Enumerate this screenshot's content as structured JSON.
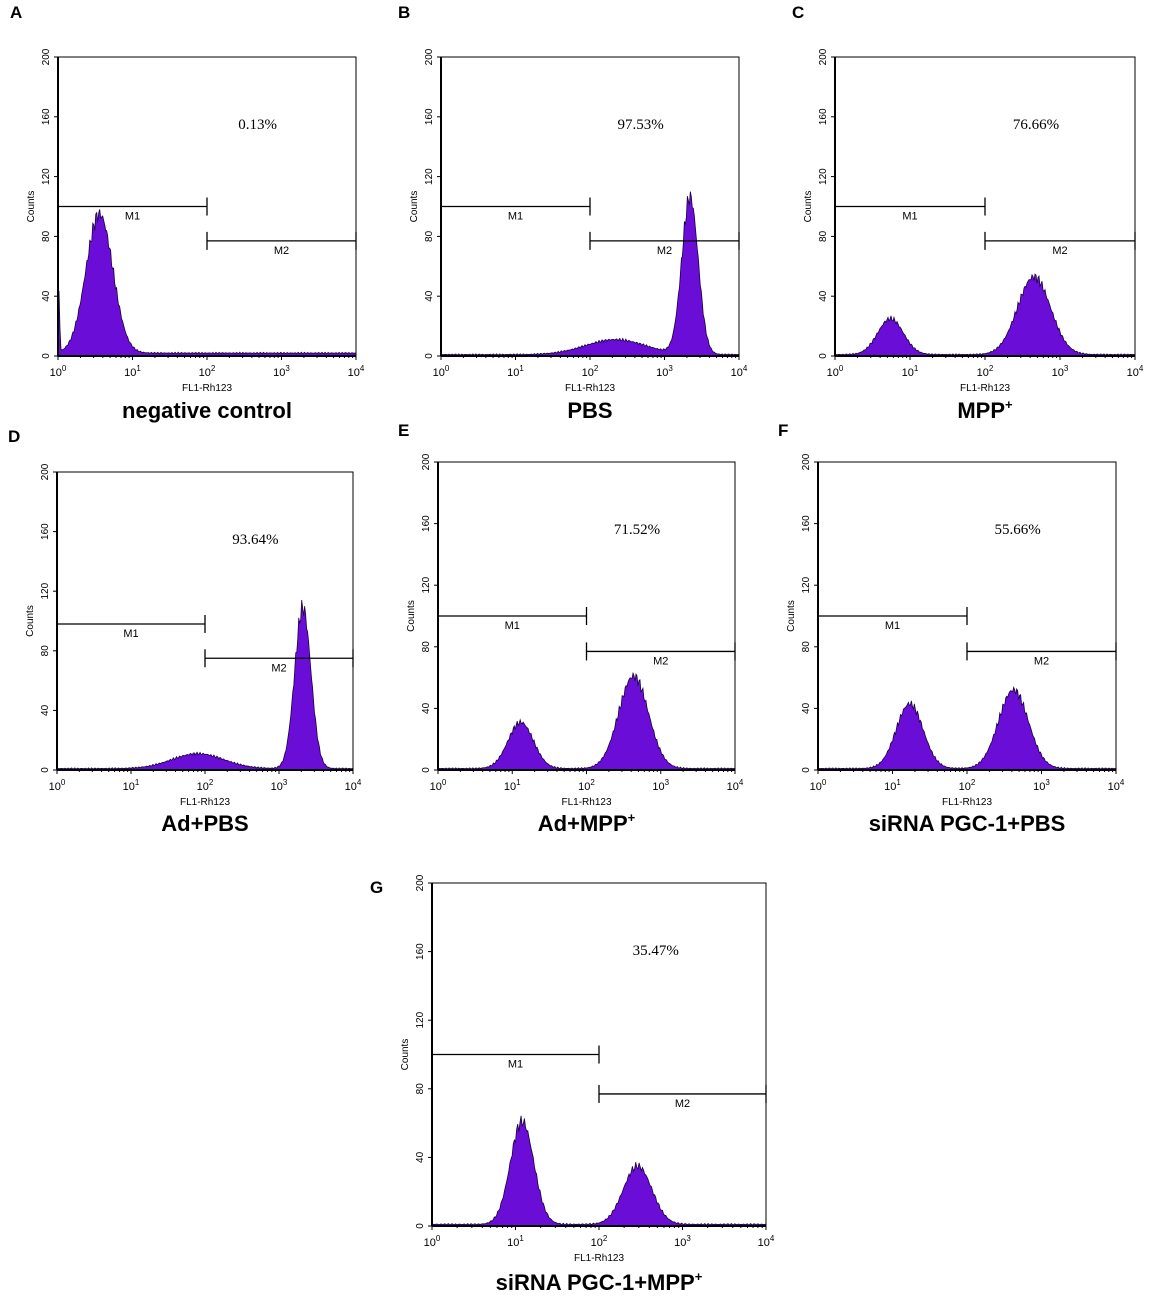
{
  "chart_data": [
    {
      "type": "area",
      "panel": "A",
      "caption": "negative control",
      "caption_sup": "",
      "xlabel": "FL1-Rh123",
      "ylabel": "Counts",
      "xscale": "log",
      "xlim": [
        1,
        10000
      ],
      "ylim": [
        0,
        200
      ],
      "yticks": [
        0,
        40,
        80,
        120,
        160,
        200
      ],
      "percent_label": "0.13%",
      "gates": [
        {
          "name": "M1",
          "x_start": 1,
          "x_end": 100,
          "level": 100
        },
        {
          "name": "M2",
          "x_start": 100,
          "x_end": 10000,
          "level": 77
        }
      ],
      "peaks": [
        {
          "center": 3.6,
          "height": 93,
          "width": 0.18
        },
        {
          "center": 1.03,
          "height": 40,
          "width": 0.01
        }
      ],
      "baseline": 2,
      "color": "#6a0dd6"
    },
    {
      "type": "area",
      "panel": "B",
      "caption": "PBS",
      "caption_sup": "",
      "xlabel": "FL1-Rh123",
      "ylabel": "Counts",
      "xscale": "log",
      "xlim": [
        1,
        10000
      ],
      "ylim": [
        0,
        200
      ],
      "yticks": [
        0,
        40,
        80,
        120,
        160,
        200
      ],
      "percent_label": "97.53%",
      "gates": [
        {
          "name": "M1",
          "x_start": 1,
          "x_end": 100,
          "level": 100
        },
        {
          "name": "M2",
          "x_start": 100,
          "x_end": 10000,
          "level": 77
        }
      ],
      "peaks": [
        {
          "center": 2200,
          "height": 105,
          "width": 0.11
        },
        {
          "center": 220,
          "height": 10,
          "width": 0.4
        }
      ],
      "baseline": 1,
      "color": "#6a0dd6"
    },
    {
      "type": "area",
      "panel": "C",
      "caption": "MPP",
      "caption_sup": "+",
      "xlabel": "FL1-Rh123",
      "ylabel": "Counts",
      "xscale": "log",
      "xlim": [
        1,
        10000
      ],
      "ylim": [
        0,
        200
      ],
      "yticks": [
        0,
        40,
        80,
        120,
        160,
        200
      ],
      "percent_label": "76.66%",
      "gates": [
        {
          "name": "M1",
          "x_start": 1,
          "x_end": 100,
          "level": 100
        },
        {
          "name": "M2",
          "x_start": 100,
          "x_end": 10000,
          "level": 77
        }
      ],
      "peaks": [
        {
          "center": 5.5,
          "height": 24,
          "width": 0.17
        },
        {
          "center": 450,
          "height": 52,
          "width": 0.22
        }
      ],
      "baseline": 1,
      "color": "#6a0dd6"
    },
    {
      "type": "area",
      "panel": "D",
      "caption": "Ad+PBS",
      "caption_sup": "",
      "xlabel": "FL1-Rh123",
      "ylabel": "Counts",
      "xscale": "log",
      "xlim": [
        1,
        10000
      ],
      "ylim": [
        0,
        200
      ],
      "yticks": [
        0,
        40,
        80,
        120,
        160,
        200
      ],
      "percent_label": "93.64%",
      "gates": [
        {
          "name": "M1",
          "x_start": 1,
          "x_end": 100,
          "level": 98
        },
        {
          "name": "M2",
          "x_start": 100,
          "x_end": 10000,
          "level": 75
        }
      ],
      "peaks": [
        {
          "center": 2100,
          "height": 108,
          "width": 0.11
        },
        {
          "center": 80,
          "height": 10,
          "width": 0.35
        }
      ],
      "baseline": 1,
      "color": "#6a0dd6"
    },
    {
      "type": "area",
      "panel": "E",
      "caption": "Ad+MPP",
      "caption_sup": "+",
      "xlabel": "FL1-Rh123",
      "ylabel": "Counts",
      "xscale": "log",
      "xlim": [
        1,
        10000
      ],
      "ylim": [
        0,
        200
      ],
      "yticks": [
        0,
        40,
        80,
        120,
        160,
        200
      ],
      "percent_label": "71.52%",
      "gates": [
        {
          "name": "M1",
          "x_start": 1,
          "x_end": 100,
          "level": 100
        },
        {
          "name": "M2",
          "x_start": 100,
          "x_end": 10000,
          "level": 77
        }
      ],
      "peaks": [
        {
          "center": 13,
          "height": 30,
          "width": 0.17
        },
        {
          "center": 430,
          "height": 60,
          "width": 0.2
        }
      ],
      "baseline": 1,
      "color": "#6a0dd6"
    },
    {
      "type": "area",
      "panel": "F",
      "caption": "siRNA PGC-1+PBS",
      "caption_sup": "",
      "xlabel": "FL1-Rh123",
      "ylabel": "Counts",
      "xscale": "log",
      "xlim": [
        1,
        10000
      ],
      "ylim": [
        0,
        200
      ],
      "yticks": [
        0,
        40,
        80,
        120,
        160,
        200
      ],
      "percent_label": "55.66%",
      "gates": [
        {
          "name": "M1",
          "x_start": 1,
          "x_end": 100,
          "level": 100
        },
        {
          "name": "M2",
          "x_start": 100,
          "x_end": 10000,
          "level": 77
        }
      ],
      "peaks": [
        {
          "center": 17,
          "height": 42,
          "width": 0.18
        },
        {
          "center": 420,
          "height": 51,
          "width": 0.2
        }
      ],
      "baseline": 1,
      "color": "#6a0dd6"
    },
    {
      "type": "area",
      "panel": "G",
      "caption": "siRNA PGC-1+MPP",
      "caption_sup": "+",
      "xlabel": "FL1-Rh123",
      "ylabel": "Counts",
      "xscale": "log",
      "xlim": [
        1,
        10000
      ],
      "ylim": [
        0,
        200
      ],
      "yticks": [
        0,
        40,
        80,
        120,
        160,
        200
      ],
      "percent_label": "35.47%",
      "gates": [
        {
          "name": "M1",
          "x_start": 1,
          "x_end": 100,
          "level": 100
        },
        {
          "name": "M2",
          "x_start": 100,
          "x_end": 10000,
          "level": 77
        }
      ],
      "peaks": [
        {
          "center": 12,
          "height": 60,
          "width": 0.14
        },
        {
          "center": 290,
          "height": 34,
          "width": 0.17
        }
      ],
      "baseline": 1,
      "color": "#6a0dd6"
    }
  ]
}
